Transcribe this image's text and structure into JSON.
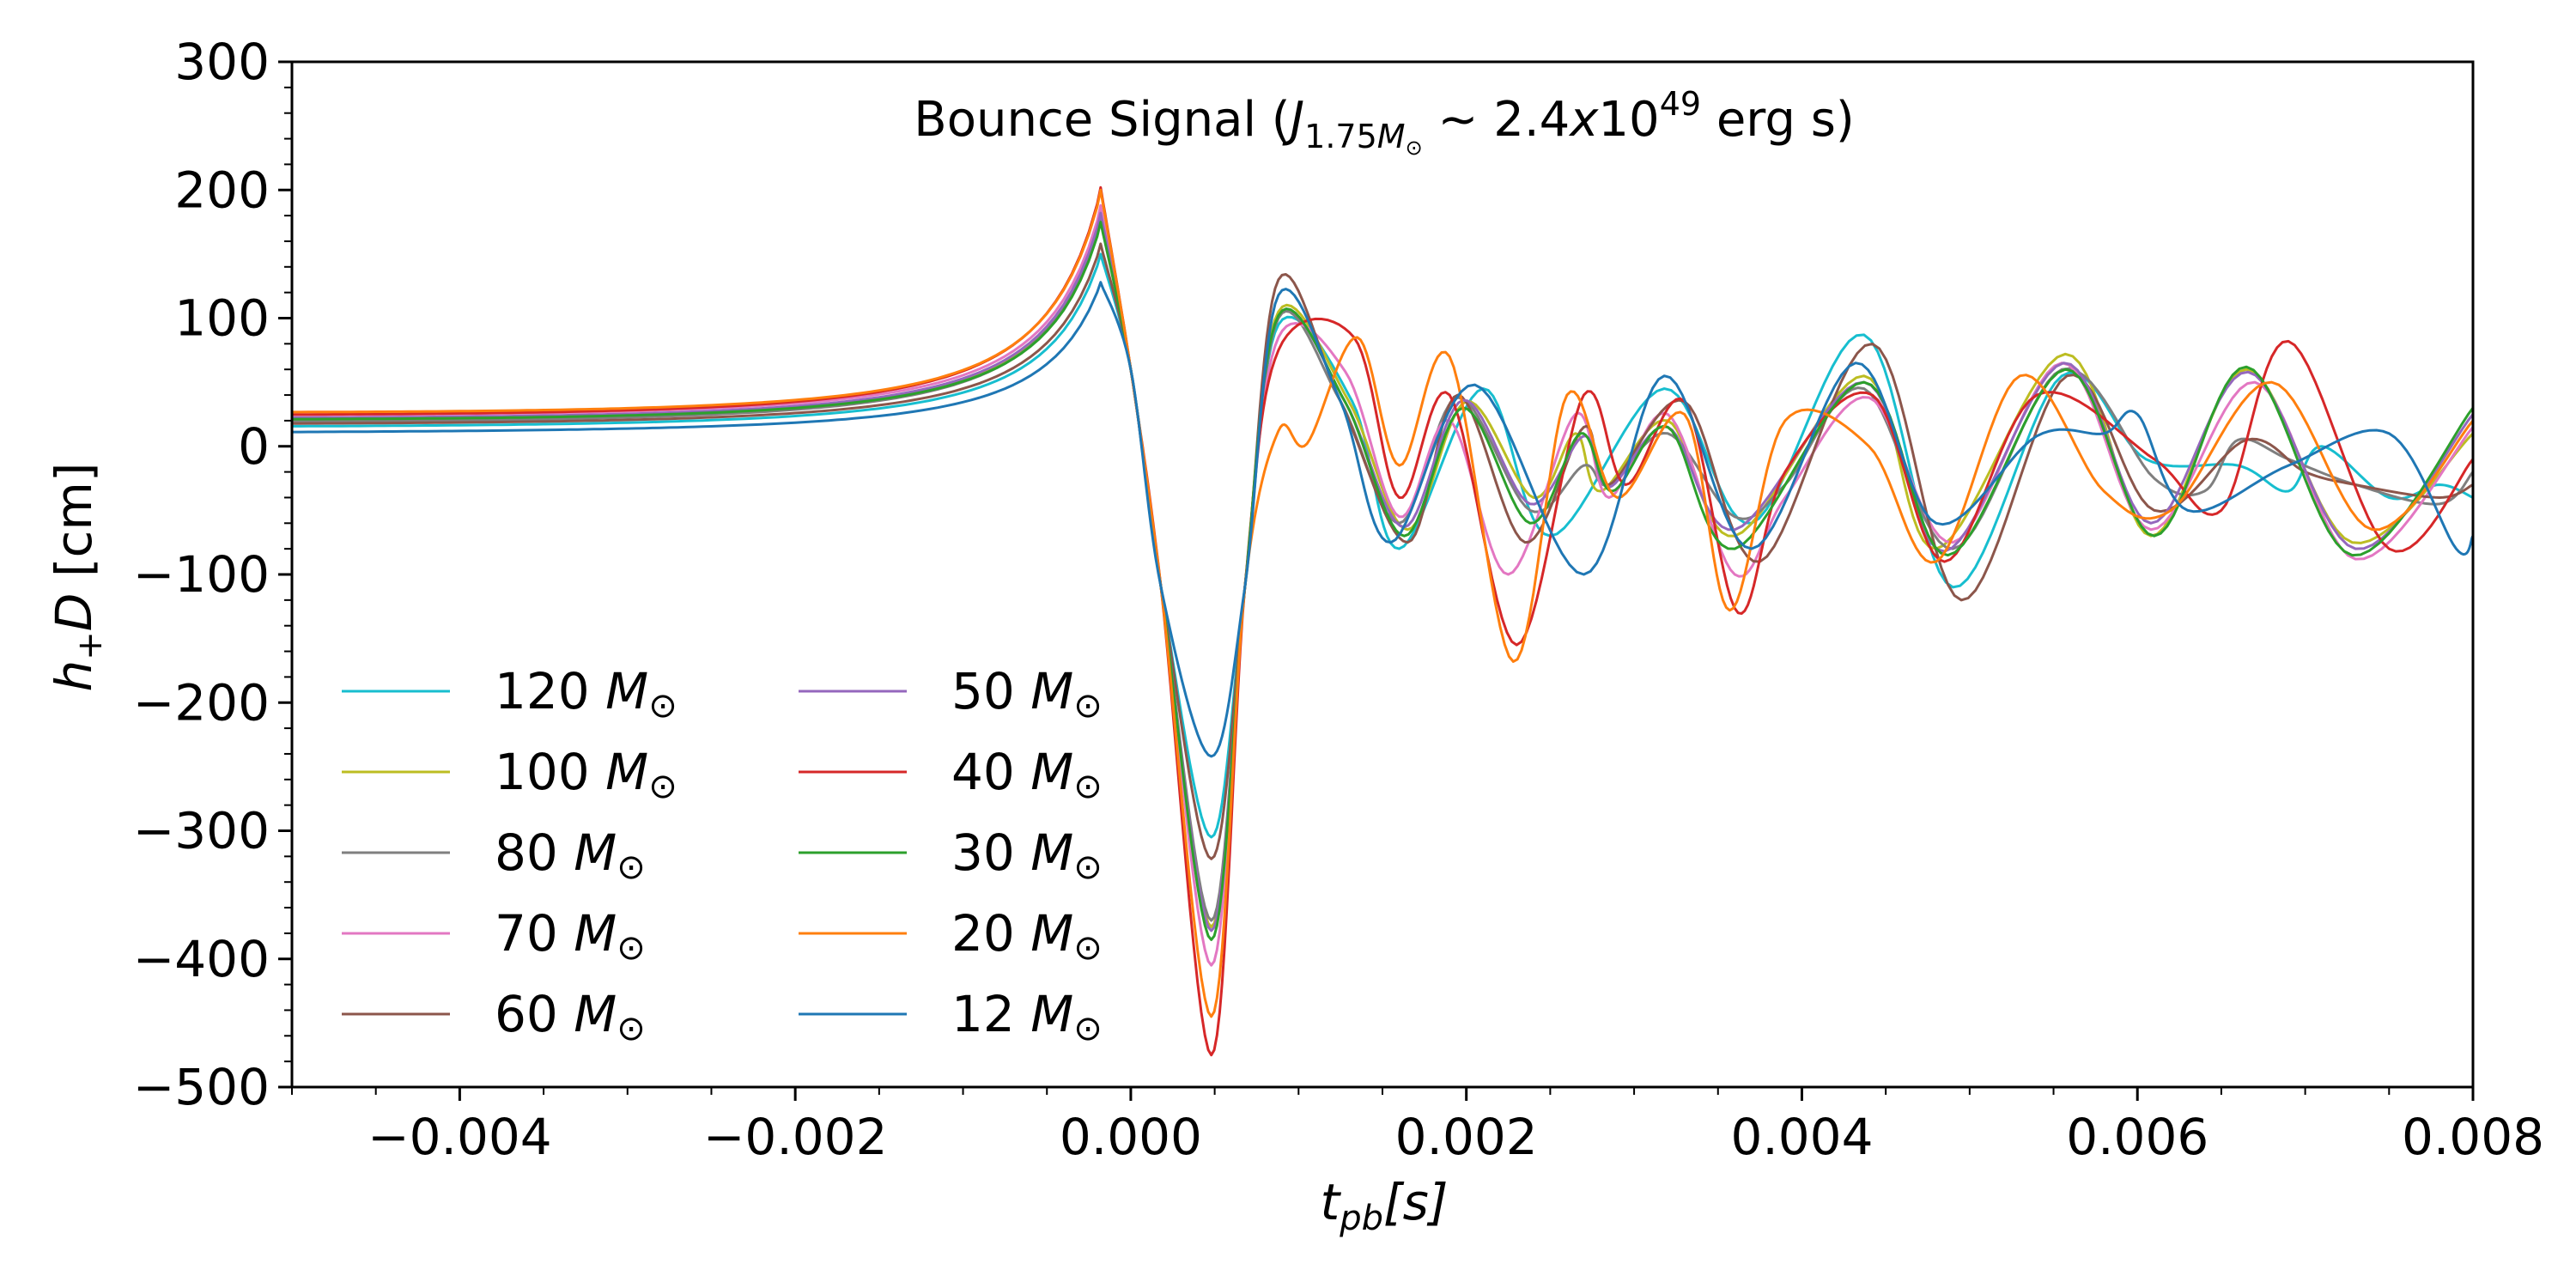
{
  "chart_data": {
    "type": "line",
    "title": {
      "prefix": "Bounce Signal (",
      "J": "J",
      "J_sub": "1.75",
      "J_sub_M": "M",
      "J_sub_sun": "⊙",
      "sim": " ∼ 2.4",
      "x_italic": "x",
      "ten": "10",
      "exponent": "49",
      "suffix": " erg s)"
    },
    "xlabel": {
      "t": "t",
      "sub": "pb",
      "rest": "[s]"
    },
    "ylabel": {
      "h": "h",
      "sub": "+",
      "D": "D",
      "unit": " [cm]"
    },
    "xlim": [
      -0.005,
      0.008
    ],
    "ylim": [
      -500,
      300
    ],
    "xticks": [
      -0.004,
      -0.002,
      0.0,
      0.002,
      0.004,
      0.006,
      0.008
    ],
    "xtick_labels": [
      "−0.004",
      "−0.002",
      "0.000",
      "0.002",
      "0.004",
      "0.006",
      "0.008"
    ],
    "yticks": [
      -500,
      -400,
      -300,
      -200,
      -100,
      0,
      100,
      200,
      300
    ],
    "ytick_labels": [
      "−500",
      "−400",
      "−300",
      "−200",
      "−100",
      "0",
      "100",
      "200",
      "300"
    ],
    "grid": false,
    "legend_position": "lower-left",
    "legend_unit": "M",
    "legend_sun": "⊙",
    "series": [
      {
        "name": "120",
        "color": "#17becf",
        "pre": 12,
        "peak": 150,
        "min": -305,
        "post": 95,
        "osc": [
          [
            0.00132,
            35
          ],
          [
            0.0016,
            -80
          ],
          [
            0.0021,
            45
          ],
          [
            0.0025,
            -70
          ],
          [
            0.00318,
            45
          ],
          [
            0.0037,
            -60
          ],
          [
            0.00437,
            87
          ],
          [
            0.0049,
            -110
          ],
          [
            0.00555,
            55
          ],
          [
            0.00605,
            -10
          ],
          [
            0.0066,
            -15
          ],
          [
            0.0069,
            -35
          ],
          [
            0.0071,
            0
          ],
          [
            0.0075,
            -40
          ],
          [
            0.0078,
            -30
          ],
          [
            0.008,
            -40
          ]
        ]
      },
      {
        "name": "100",
        "color": "#bcbd22",
        "pre": 16,
        "peak": 180,
        "min": -375,
        "post": 105,
        "osc": [
          [
            0.0013,
            35
          ],
          [
            0.00165,
            -65
          ],
          [
            0.002,
            35
          ],
          [
            0.0024,
            -40
          ],
          [
            0.00265,
            10
          ],
          [
            0.0028,
            -35
          ],
          [
            0.0032,
            20
          ],
          [
            0.0036,
            -70
          ],
          [
            0.00437,
            55
          ],
          [
            0.0048,
            -80
          ],
          [
            0.00557,
            72
          ],
          [
            0.00608,
            -70
          ],
          [
            0.00665,
            60
          ],
          [
            0.00728,
            -75
          ],
          [
            0.008,
            10
          ]
        ]
      },
      {
        "name": "80",
        "color": "#7f7f7f",
        "pre": 15,
        "peak": 178,
        "min": -370,
        "post": 100,
        "osc": [
          [
            0.00125,
            35
          ],
          [
            0.0016,
            -60
          ],
          [
            0.00195,
            38
          ],
          [
            0.00238,
            -50
          ],
          [
            0.0027,
            -15
          ],
          [
            0.00285,
            -30
          ],
          [
            0.0032,
            10
          ],
          [
            0.0036,
            -55
          ],
          [
            0.0039,
            -30
          ],
          [
            0.00437,
            45
          ],
          [
            0.0049,
            -80
          ],
          [
            0.00555,
            60
          ],
          [
            0.0061,
            -25
          ],
          [
            0.0064,
            -35
          ],
          [
            0.0066,
            5
          ],
          [
            0.0069,
            -10
          ],
          [
            0.0073,
            -30
          ],
          [
            0.0078,
            -45
          ],
          [
            0.008,
            -20
          ]
        ]
      },
      {
        "name": "70",
        "color": "#e377c2",
        "pre": 20,
        "peak": 188,
        "min": -405,
        "post": 85,
        "osc": [
          [
            0.00128,
            58
          ],
          [
            0.0016,
            -55
          ],
          [
            0.0019,
            20
          ],
          [
            0.00225,
            -100
          ],
          [
            0.00265,
            25
          ],
          [
            0.00285,
            -40
          ],
          [
            0.0032,
            25
          ],
          [
            0.0036,
            -100
          ],
          [
            0.0039,
            -40
          ],
          [
            0.0044,
            38
          ],
          [
            0.0049,
            -75
          ],
          [
            0.00555,
            65
          ],
          [
            0.00608,
            -65
          ],
          [
            0.0067,
            50
          ],
          [
            0.0073,
            -88
          ],
          [
            0.008,
            15
          ]
        ]
      },
      {
        "name": "60",
        "color": "#8c564b",
        "pre": 14,
        "peak": 158,
        "min": -322,
        "post": 130,
        "osc": [
          [
            0.00125,
            35
          ],
          [
            0.00165,
            -75
          ],
          [
            0.00195,
            40
          ],
          [
            0.00235,
            -75
          ],
          [
            0.0027,
            15
          ],
          [
            0.00285,
            -30
          ],
          [
            0.0033,
            35
          ],
          [
            0.00375,
            -90
          ],
          [
            0.00442,
            80
          ],
          [
            0.00495,
            -120
          ],
          [
            0.00558,
            55
          ],
          [
            0.0061,
            -50
          ],
          [
            0.00665,
            5
          ],
          [
            0.007,
            -20
          ],
          [
            0.0073,
            -30
          ],
          [
            0.0078,
            -40
          ],
          [
            0.008,
            -30
          ]
        ]
      },
      {
        "name": "50",
        "color": "#9467bd",
        "pre": 18,
        "peak": 182,
        "min": -378,
        "post": 102,
        "osc": [
          [
            0.00128,
            34
          ],
          [
            0.00163,
            -63
          ],
          [
            0.00198,
            36
          ],
          [
            0.00238,
            -45
          ],
          [
            0.0027,
            8
          ],
          [
            0.00285,
            -32
          ],
          [
            0.0032,
            15
          ],
          [
            0.0036,
            -65
          ],
          [
            0.00437,
            50
          ],
          [
            0.00485,
            -82
          ],
          [
            0.00556,
            65
          ],
          [
            0.00608,
            -60
          ],
          [
            0.00666,
            58
          ],
          [
            0.0073,
            -80
          ],
          [
            0.008,
            25
          ]
        ]
      },
      {
        "name": "40",
        "color": "#d62728",
        "pre": 20,
        "peak": 202,
        "min": -475,
        "post": 75,
        "osc": [
          [
            0.00133,
            85
          ],
          [
            0.0016,
            -40
          ],
          [
            0.0019,
            40
          ],
          [
            0.0023,
            -155
          ],
          [
            0.0027,
            40
          ],
          [
            0.00295,
            -30
          ],
          [
            0.0033,
            35
          ],
          [
            0.00362,
            -130
          ],
          [
            0.0039,
            -20
          ],
          [
            0.00442,
            40
          ],
          [
            0.00485,
            -90
          ],
          [
            0.0054,
            40
          ],
          [
            0.0061,
            -10
          ],
          [
            0.0065,
            -50
          ],
          [
            0.0069,
            82
          ],
          [
            0.0075,
            -80
          ],
          [
            0.008,
            -10
          ]
        ]
      },
      {
        "name": "30",
        "color": "#2ca02c",
        "pre": 17,
        "peak": 175,
        "min": -385,
        "post": 102,
        "osc": [
          [
            0.00128,
            34
          ],
          [
            0.00163,
            -70
          ],
          [
            0.00198,
            30
          ],
          [
            0.00238,
            -60
          ],
          [
            0.00268,
            10
          ],
          [
            0.00287,
            -35
          ],
          [
            0.0032,
            15
          ],
          [
            0.0036,
            -80
          ],
          [
            0.00437,
            50
          ],
          [
            0.00487,
            -85
          ],
          [
            0.00557,
            60
          ],
          [
            0.0061,
            -70
          ],
          [
            0.00665,
            62
          ],
          [
            0.00728,
            -85
          ],
          [
            0.008,
            30
          ]
        ]
      },
      {
        "name": "20",
        "color": "#ff7f0e",
        "pre": 22,
        "peak": 200,
        "min": -445,
        "post": 12,
        "osc": [
          [
            0.00105,
            2
          ],
          [
            0.00135,
            85
          ],
          [
            0.0016,
            -15
          ],
          [
            0.0019,
            70
          ],
          [
            0.00228,
            -168
          ],
          [
            0.0026,
            40
          ],
          [
            0.0029,
            -40
          ],
          [
            0.0033,
            25
          ],
          [
            0.00357,
            -128
          ],
          [
            0.0039,
            20
          ],
          [
            0.0044,
            0
          ],
          [
            0.0048,
            -90
          ],
          [
            0.0053,
            55
          ],
          [
            0.0058,
            -35
          ],
          [
            0.0062,
            -50
          ],
          [
            0.0068,
            50
          ],
          [
            0.0074,
            -65
          ],
          [
            0.008,
            20
          ]
        ]
      },
      {
        "name": "12",
        "color": "#1f77b4",
        "pre": 8,
        "peak": 128,
        "min": -242,
        "post": 118,
        "osc": [
          [
            0.00125,
            35
          ],
          [
            0.00155,
            -75
          ],
          [
            0.00205,
            48
          ],
          [
            0.0027,
            -100
          ],
          [
            0.00318,
            55
          ],
          [
            0.0037,
            -80
          ],
          [
            0.00432,
            65
          ],
          [
            0.0048,
            -60
          ],
          [
            0.0054,
            8
          ],
          [
            0.0058,
            10
          ],
          [
            0.006,
            25
          ],
          [
            0.0063,
            -50
          ],
          [
            0.0069,
            -15
          ],
          [
            0.0075,
            10
          ],
          [
            0.0079,
            -80
          ],
          [
            0.008,
            -70
          ]
        ]
      }
    ]
  }
}
